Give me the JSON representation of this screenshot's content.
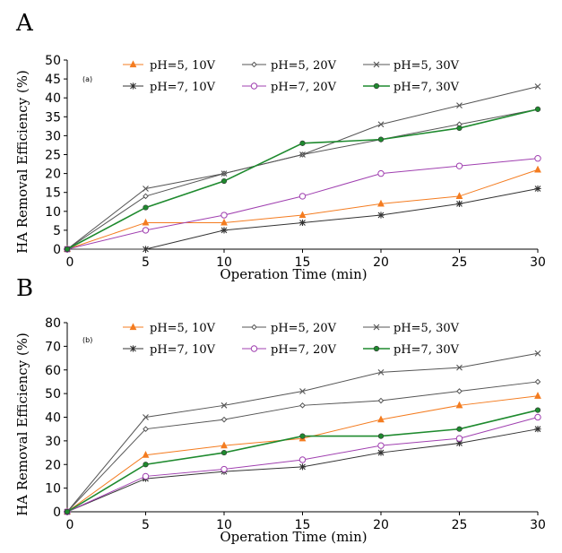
{
  "chart_data": [
    {
      "type": "line",
      "panel_letter": "A",
      "sub_label": "(a)",
      "xlabel": "Operation Time (min)",
      "ylabel": "HA Removal Efficiency (%)",
      "x": [
        0,
        5,
        10,
        15,
        20,
        25,
        30
      ],
      "xlim": [
        0,
        30
      ],
      "ylim": [
        0,
        50
      ],
      "xticks": [
        0,
        5,
        10,
        15,
        20,
        25,
        30
      ],
      "yticks": [
        0,
        5,
        10,
        15,
        20,
        25,
        30,
        35,
        40,
        45,
        50
      ],
      "legend_position": "top",
      "series": [
        {
          "name": "pH=5, 10V",
          "color": "#f47c20",
          "marker": "triangle",
          "values": [
            0,
            7,
            7,
            9,
            12,
            14,
            21
          ]
        },
        {
          "name": "pH=5, 20V",
          "color": "#555555",
          "marker": "diamond",
          "values": [
            0,
            14,
            20,
            25,
            29,
            33,
            37
          ]
        },
        {
          "name": "pH=5, 30V",
          "color": "#555555",
          "marker": "x",
          "values": [
            0,
            16,
            20,
            25,
            33,
            38,
            43
          ]
        },
        {
          "name": "pH=7, 10V",
          "color": "#333333",
          "marker": "star",
          "values": [
            0,
            0,
            5,
            7,
            9,
            12,
            16
          ]
        },
        {
          "name": "pH=7, 20V",
          "color": "#a040b0",
          "marker": "circle-open",
          "values": [
            0,
            5,
            9,
            14,
            20,
            22,
            24
          ]
        },
        {
          "name": "pH=7, 30V",
          "color": "#1e8a2e",
          "marker": "circle-filled",
          "values": [
            0,
            11,
            18,
            28,
            29,
            32,
            37
          ]
        }
      ]
    },
    {
      "type": "line",
      "panel_letter": "B",
      "sub_label": "(b)",
      "xlabel": "Operation Time (min)",
      "ylabel": "HA Removal Efficiency (%)",
      "x": [
        0,
        5,
        10,
        15,
        20,
        25,
        30
      ],
      "xlim": [
        0,
        30
      ],
      "ylim": [
        0,
        80
      ],
      "xticks": [
        0,
        5,
        10,
        15,
        20,
        25,
        30
      ],
      "yticks": [
        0,
        10,
        20,
        30,
        40,
        50,
        60,
        70,
        80
      ],
      "legend_position": "top",
      "series": [
        {
          "name": "pH=5, 10V",
          "color": "#f47c20",
          "marker": "triangle",
          "values": [
            0,
            24,
            28,
            31,
            39,
            45,
            49
          ]
        },
        {
          "name": "pH=5, 20V",
          "color": "#555555",
          "marker": "diamond",
          "values": [
            0,
            35,
            39,
            45,
            47,
            51,
            55
          ]
        },
        {
          "name": "pH=5, 30V",
          "color": "#555555",
          "marker": "x",
          "values": [
            0,
            40,
            45,
            51,
            59,
            61,
            67
          ]
        },
        {
          "name": "pH=7, 10V",
          "color": "#333333",
          "marker": "star",
          "values": [
            0,
            14,
            17,
            19,
            25,
            29,
            35
          ]
        },
        {
          "name": "pH=7, 20V",
          "color": "#a040b0",
          "marker": "circle-open",
          "values": [
            0,
            15,
            18,
            22,
            28,
            31,
            40
          ]
        },
        {
          "name": "pH=7, 30V",
          "color": "#1e8a2e",
          "marker": "circle-filled",
          "values": [
            0,
            20,
            25,
            32,
            32,
            35,
            43
          ]
        }
      ]
    }
  ]
}
